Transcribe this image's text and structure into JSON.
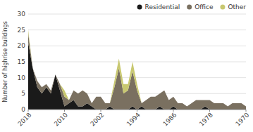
{
  "chart_data": {
    "type": "area",
    "stacked": true,
    "x": [
      2018,
      2017,
      2016,
      2015,
      2014,
      2013,
      2012,
      2011,
      2010,
      2009,
      2008,
      2007,
      2006,
      2005,
      2004,
      2003,
      2002,
      2001,
      2000,
      1999,
      1998,
      1997,
      1996,
      1995,
      1994,
      1993,
      1992,
      1991,
      1990,
      1989,
      1988,
      1987,
      1986,
      1985,
      1984,
      1983,
      1982,
      1981,
      1980,
      1979,
      1978,
      1977,
      1976,
      1975,
      1974,
      1973,
      1972,
      1971,
      1970
    ],
    "series": [
      {
        "name": "Residential",
        "color": "#1a1a1a",
        "values": [
          21,
          13,
          7,
          5,
          7,
          5,
          11,
          6,
          1,
          2,
          3,
          1,
          1,
          2,
          1,
          0,
          0,
          0,
          1,
          0,
          0,
          0,
          0,
          1,
          0,
          1,
          0,
          0,
          0,
          1,
          0,
          0,
          1,
          0,
          0,
          0,
          0,
          0,
          0,
          1,
          0,
          0,
          0,
          0,
          0,
          0,
          0,
          0,
          0
        ]
      },
      {
        "name": "Office",
        "color": "#7a7060",
        "values": [
          3,
          0,
          2,
          2,
          1,
          1,
          0,
          2,
          3,
          1,
          3,
          4,
          5,
          3,
          1,
          4,
          4,
          2,
          1,
          7,
          13,
          5,
          6,
          11,
          6,
          1,
          3,
          4,
          4,
          4,
          6,
          3,
          3,
          2,
          2,
          1,
          2,
          3,
          3,
          2,
          3,
          2,
          2,
          2,
          1,
          2,
          2,
          2,
          1
        ]
      },
      {
        "name": "Other",
        "color": "#c8c870",
        "values": [
          1,
          0,
          0,
          0,
          0,
          0,
          0,
          0,
          2,
          0,
          0,
          0,
          0,
          0,
          0,
          0,
          0,
          0,
          0,
          2,
          3,
          3,
          2,
          3,
          2,
          0,
          0,
          0,
          0,
          0,
          0,
          0,
          0,
          0,
          0,
          0,
          0,
          0,
          0,
          0,
          0,
          0,
          0,
          0,
          0,
          0,
          0,
          0,
          0
        ]
      }
    ],
    "ylabel": "Number of highrise buildings",
    "xlim": [
      2018,
      1970
    ],
    "xticks": [
      2018,
      2010,
      2002,
      1994,
      1986,
      1978,
      1970
    ],
    "ylim": [
      0,
      30
    ],
    "yticks": [
      0,
      5,
      10,
      15,
      20,
      25,
      30
    ],
    "grid": true,
    "legend": "upper right"
  }
}
